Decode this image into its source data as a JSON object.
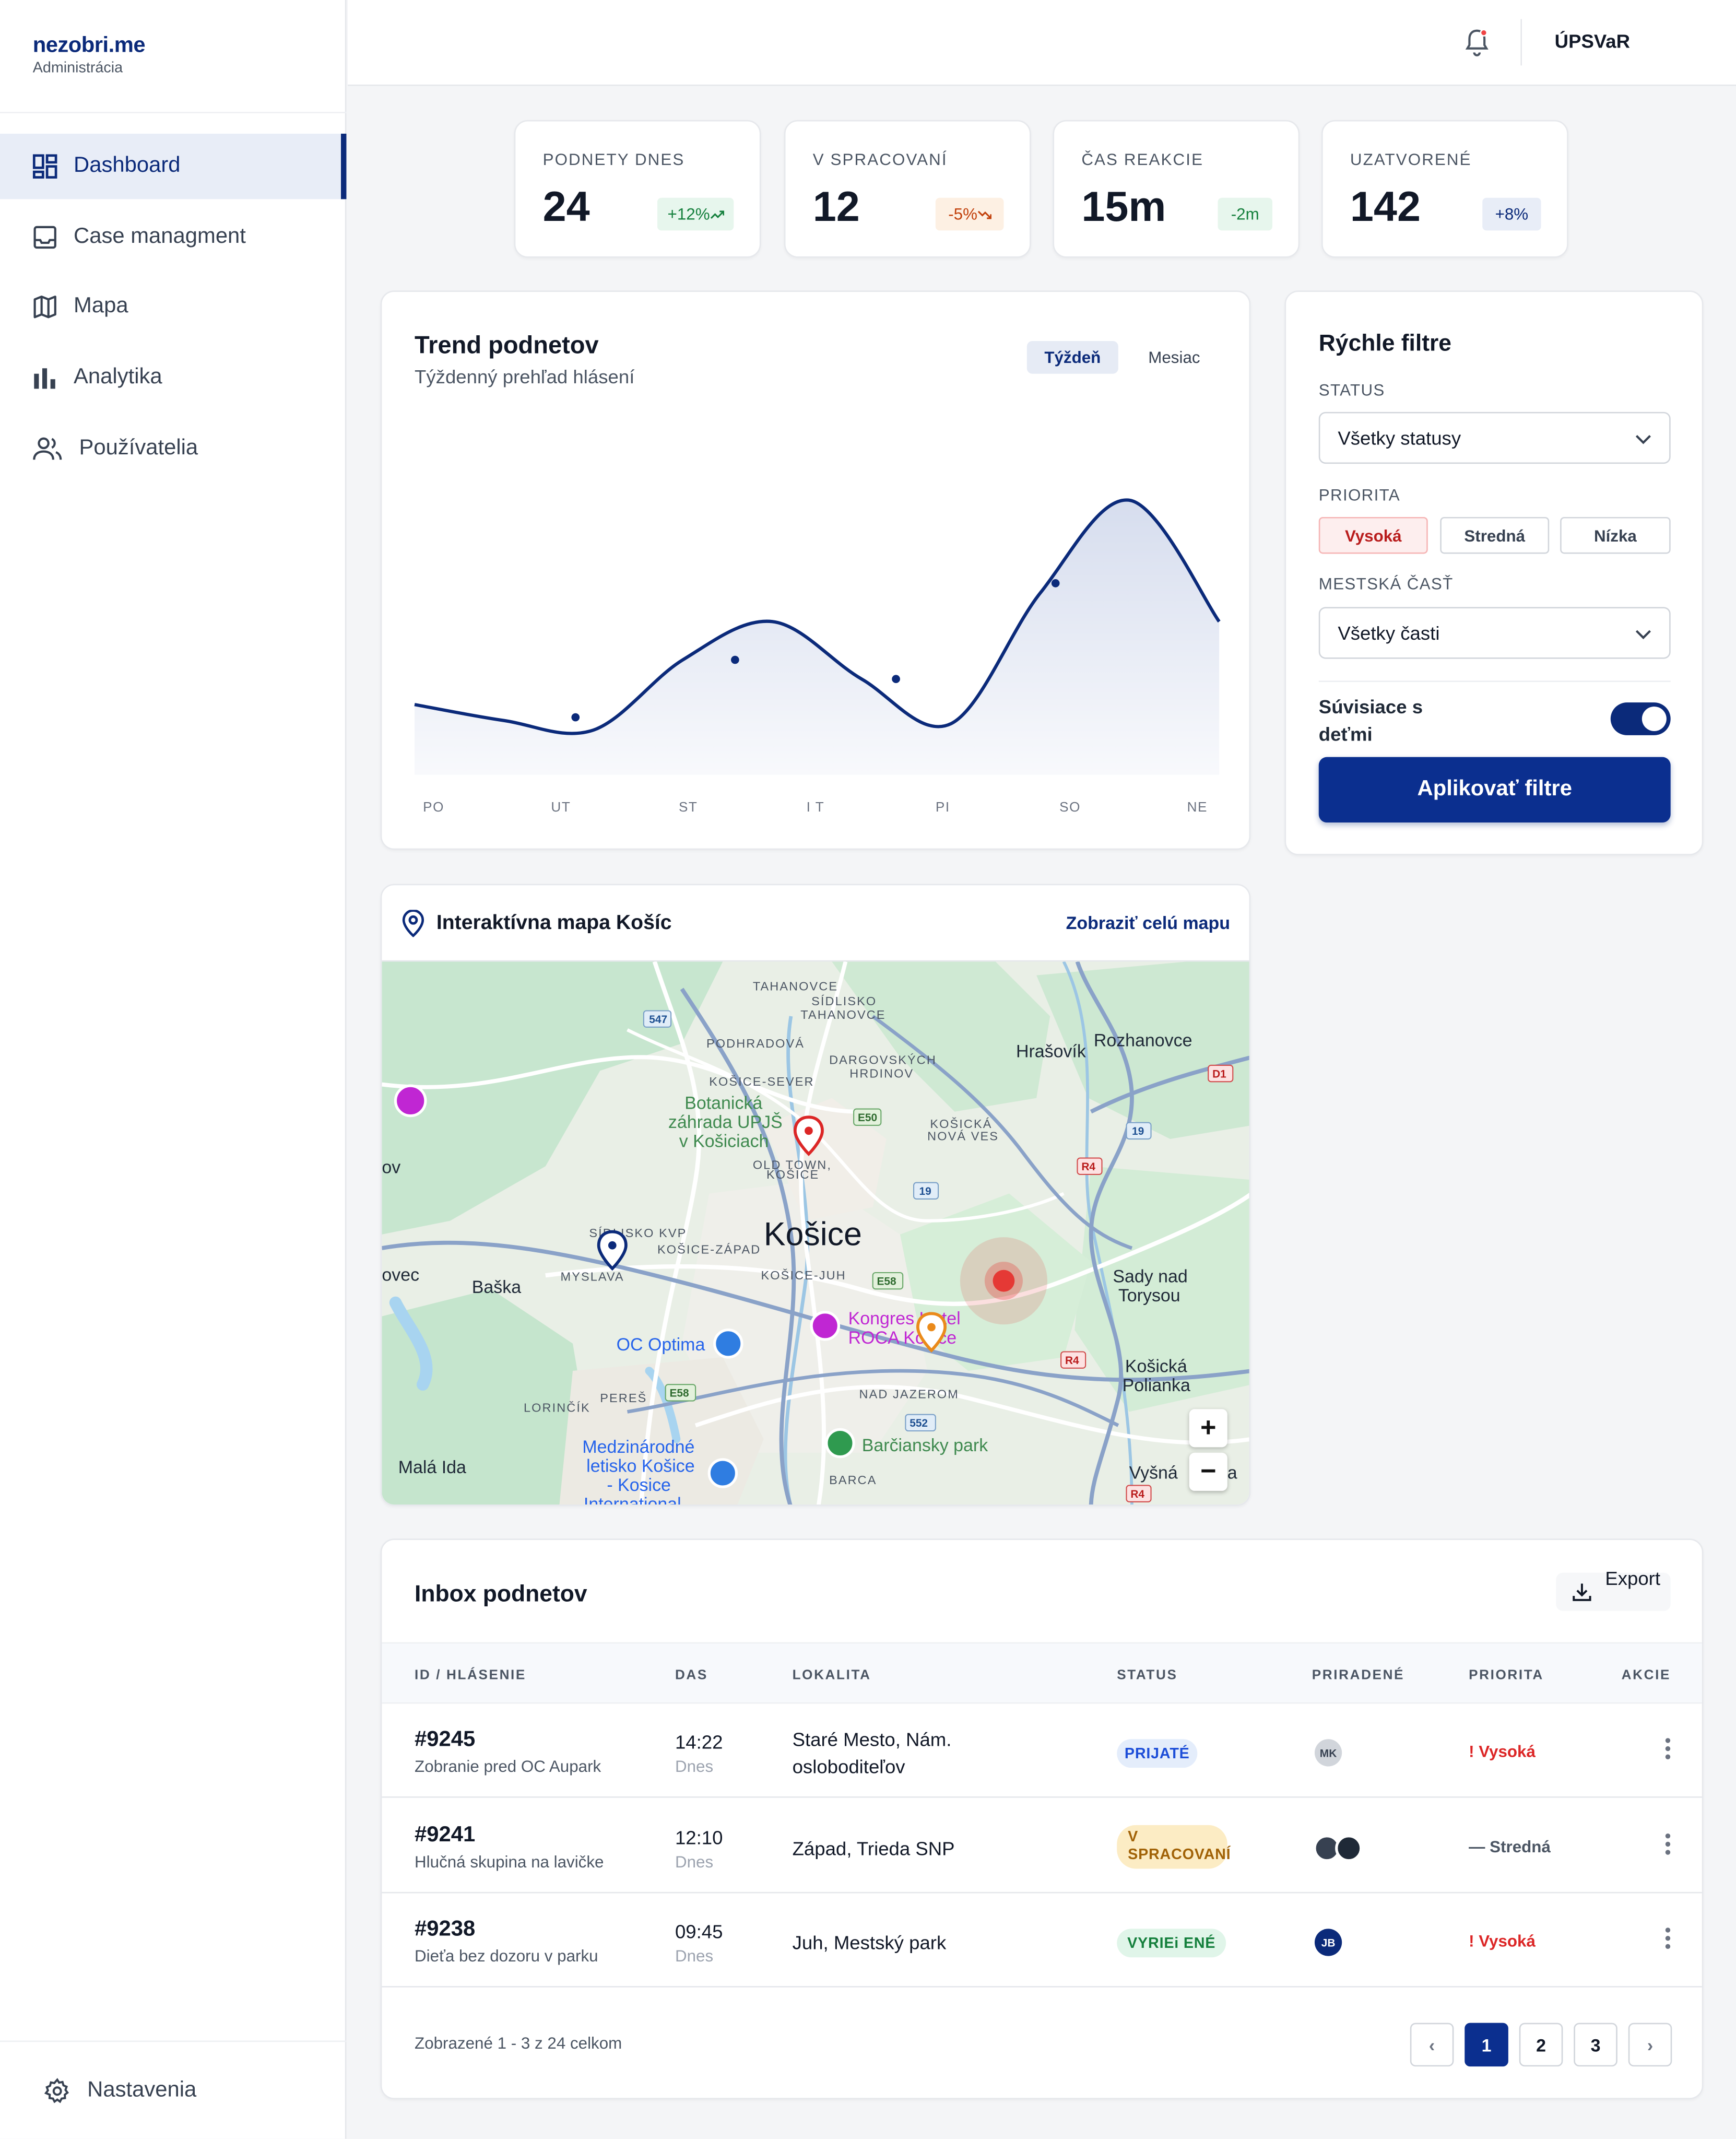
{
  "app": {
    "name": "nezobri.me",
    "subtitle": "Administrácia"
  },
  "nav": {
    "items": [
      {
        "label": "Dashboard",
        "icon": "dashboard-icon",
        "active": true
      },
      {
        "label": "Case managment",
        "icon": "inbox-icon"
      },
      {
        "label": "Mapa",
        "icon": "map-icon"
      },
      {
        "label": "Analytika",
        "icon": "bar-chart-icon"
      },
      {
        "label": "Používatelia",
        "icon": "users-icon"
      }
    ],
    "footer": {
      "label": "Nastavenia",
      "icon": "gear-icon"
    }
  },
  "topbar": {
    "user": "ÚPSVaR",
    "icon": "bell-icon"
  },
  "stats": [
    {
      "label": "PODNETY DNES",
      "value": "24",
      "delta": "+12%",
      "trend": "up",
      "color": "#15803d"
    },
    {
      "label": "V SPRACOVANÍ",
      "value": "12",
      "delta": "-5%",
      "trend": "down",
      "color": "#c2410c"
    },
    {
      "label": "ČAS REAKCIE",
      "value": "15m",
      "delta": "-2m",
      "color": "#15803d"
    },
    {
      "label": "UZATVORENÉ",
      "value": "142",
      "delta": "+8%",
      "color": "#0b2a7a"
    }
  ],
  "trend": {
    "title": "Trend podnetov",
    "subtitle": "Týždenný prehľad hlásení",
    "tabs": [
      "Týždeň",
      "Mesiac"
    ],
    "active_tab": "Týždeň"
  },
  "chart_data": {
    "type": "area",
    "title": "Trend podnetov",
    "subtitle": "Týždenný prehľad hlásení",
    "categories": [
      "PO",
      "UT",
      "ST",
      "I T",
      "PI",
      "SO",
      "NE"
    ],
    "x": [
      0,
      1,
      2,
      3,
      4,
      5,
      6
    ],
    "values": [
      0.22,
      0.18,
      0.36,
      0.3,
      0.4,
      0.6,
      0.48
    ],
    "curve_shape": [
      0.22,
      0.17,
      0.14,
      0.36,
      0.48,
      0.3,
      0.16,
      0.57,
      0.86,
      0.48
    ],
    "ylim": [
      0,
      1
    ],
    "grid": false,
    "line_color": "#0b2a7a"
  },
  "filters": {
    "title": "Rýchle filtre",
    "status": {
      "label": "STATUS",
      "value": "Všetky statusy"
    },
    "priority": {
      "label": "PRIORITA",
      "options": [
        "Vysoká",
        "Stredná",
        "Nízka"
      ],
      "selected": "Vysoká"
    },
    "district": {
      "label": "MESTSKÁ ČASŤ",
      "value": "Všetky časti"
    },
    "children": {
      "label": "Súvisiace s deťmi",
      "on": true
    },
    "apply": "Aplikovať filtre"
  },
  "map": {
    "title": "Interaktívna mapa Košíc",
    "link": "Zobraziť celú mapu",
    "labels": [
      "TAHANOVCE",
      "SÍDLISKO",
      "TAHANOVCE",
      "PODHRADOVÁ",
      "DARGOVSKÝCH",
      "HRDINOV",
      "KOŠICE-SEVER",
      "Hrašovík",
      "Rozhanovce",
      "Botanická",
      "záhrada UPJŠ",
      "v Košiciach",
      "OLD TOWN,",
      "KOŠICE",
      "KOŠICKÁ",
      "NOVÁ VES",
      "Košice",
      "SÍDLISKO KVP",
      "KOŠICE-ZÁPAD",
      "MYSLAVA",
      "KOŠICE-JUH",
      "Baška",
      "Sady nad",
      "Torysou",
      "Kongres Hotel",
      "ROCA Košice",
      "OC Optima",
      "Košická",
      "Polianka",
      "LORINČÍK",
      "PEREŠ",
      "NAD JAZEROM",
      "Medzinárodné",
      "letisko Košice",
      "- Kosice",
      "International",
      "Barčiansky park",
      "BARCA",
      "Malá Ida",
      "Vyšná",
      "ov",
      "ovec",
      "a"
    ],
    "road_labels": [
      "547",
      "E50",
      "19",
      "D1",
      "R4",
      "19",
      "E58",
      "R4",
      "E58",
      "552",
      "R4"
    ],
    "zoom": [
      "+",
      "−"
    ]
  },
  "inbox": {
    "title": "Inbox podnetov",
    "export": "Export",
    "columns": [
      "ID / HLÁSENIE",
      "DAS",
      "LOKALITA",
      "STATUS",
      "PRIRADENÉ",
      "PRIORITA",
      "AKCIE"
    ],
    "rows": [
      {
        "id": "#9245",
        "desc": "Zobranie pred OC Aupark",
        "time": "14:22",
        "day": "Dnes",
        "loc1": "Staré Mesto, Nám.",
        "loc2": "osloboditeľov",
        "status": "PRIJATÉ",
        "assignee": "MK",
        "priority": "! Vysoká"
      },
      {
        "id": "#9241",
        "desc": "Hlučná skupina na lavičke",
        "time": "12:10",
        "day": "Dnes",
        "loc1": "Západ, Trieda SNP",
        "loc2": "",
        "status1": "V",
        "status2": "SPRACOVANÍ",
        "priority": "— Stredná"
      },
      {
        "id": "#9238",
        "desc": "Dieťa bez dozoru v parku",
        "time": "09:45",
        "day": "Dnes",
        "loc1": "Juh, Mestský park",
        "loc2": "",
        "status": "VYRIEi ENÉ",
        "assignee": "JB",
        "priority": "! Vysoká"
      }
    ],
    "pagination": {
      "info": "Zobrazené 1 - 3 z 24 celkom",
      "pages": [
        "1",
        "2",
        "3"
      ],
      "current": "1",
      "prev": "‹",
      "next": "›"
    }
  }
}
